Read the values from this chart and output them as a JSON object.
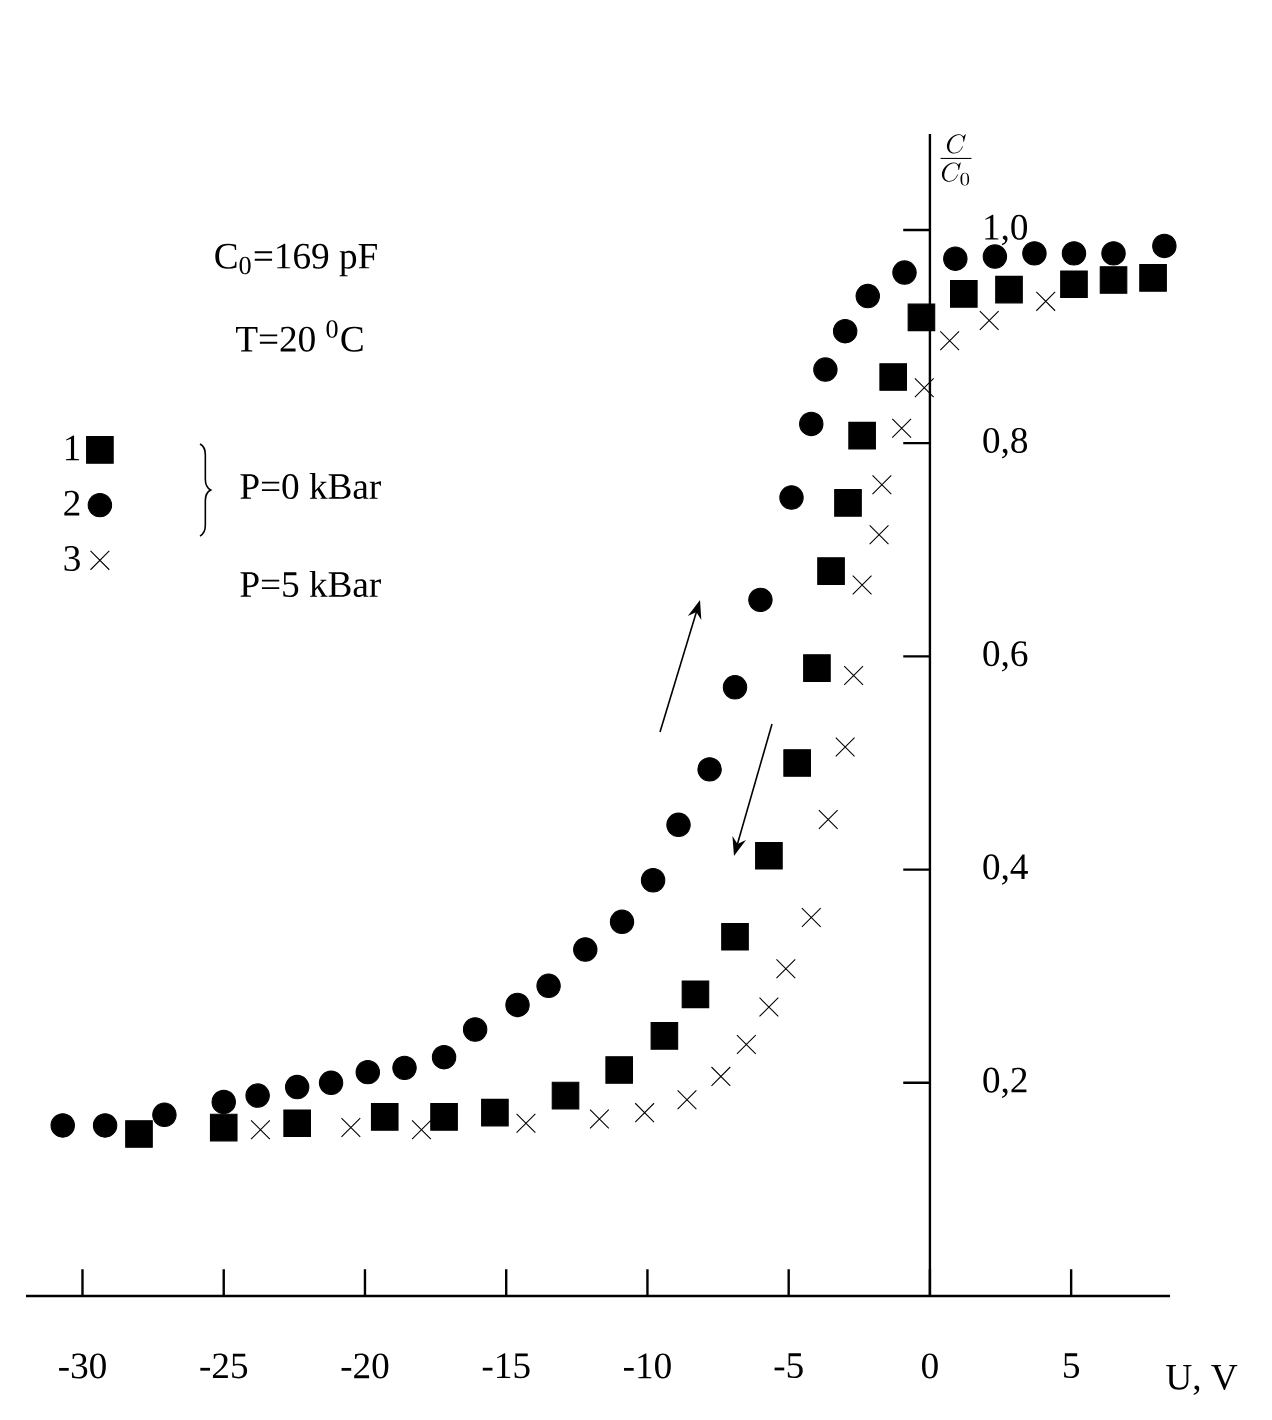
{
  "chart_data": {
    "type": "scatter",
    "ylabel": "\\frac{C}{C_{0}}",
    "xlabel": "U, V",
    "annotations": [
      "C$_{0}$=169 pF",
      "T=20 $^{0}$C",
      "P=0 kBar",
      "P=5 kBar"
    ],
    "xlim": [
      -32,
      8.5
    ],
    "ylim": [
      0,
      1.09
    ],
    "xticks": [
      -30,
      -25,
      -20,
      -15,
      -10,
      -5,
      0,
      5
    ],
    "yticks": [
      {
        "value": 0.2,
        "label": "0,2"
      },
      {
        "value": 0.4,
        "label": "0,4"
      },
      {
        "value": 0.6,
        "label": "0,6"
      },
      {
        "value": 0.8,
        "label": "0,8"
      },
      {
        "value": 1.0,
        "label": "1,0"
      }
    ],
    "legend": "top left",
    "grid": false,
    "series": [
      {
        "name": "1",
        "color": "#000000",
        "marker": "square",
        "x": [
          -28.0,
          -25.0,
          -22.4,
          -19.3,
          -17.2,
          -15.4,
          -12.9,
          -11.0,
          -9.4,
          -8.3,
          -6.9,
          -5.7,
          -4.7,
          -4.0,
          -3.5,
          -2.9,
          -2.4,
          -1.3,
          -0.3,
          1.2,
          2.8,
          5.1,
          6.5,
          7.9
        ],
        "values": [
          0.152,
          0.158,
          0.162,
          0.168,
          0.168,
          0.172,
          0.188,
          0.212,
          0.244,
          0.283,
          0.337,
          0.413,
          0.5,
          0.589,
          0.68,
          0.744,
          0.807,
          0.862,
          0.918,
          0.94,
          0.944,
          0.949,
          0.953,
          0.955
        ]
      },
      {
        "name": "2",
        "color": "#000000",
        "marker": "circle",
        "x": [
          -30.7,
          -29.2,
          -27.1,
          -25.0,
          -23.8,
          -22.4,
          -21.2,
          -19.9,
          -18.6,
          -17.2,
          -16.1,
          -14.6,
          -13.5,
          -12.2,
          -10.9,
          -9.8,
          -8.9,
          -7.8,
          -6.9,
          -6.0,
          -4.9,
          -4.2,
          -3.7,
          -3.0,
          -2.2,
          -0.9,
          0.9,
          2.3,
          3.7,
          5.1,
          6.5,
          8.3
        ],
        "values": [
          0.16,
          0.16,
          0.17,
          0.182,
          0.188,
          0.196,
          0.2,
          0.21,
          0.214,
          0.224,
          0.25,
          0.273,
          0.291,
          0.325,
          0.351,
          0.39,
          0.442,
          0.494,
          0.571,
          0.653,
          0.749,
          0.818,
          0.869,
          0.905,
          0.938,
          0.96,
          0.973,
          0.975,
          0.978,
          0.978,
          0.978,
          0.985
        ]
      },
      {
        "name": "3",
        "color": "#000000",
        "marker": "cross",
        "x": [
          -23.7,
          -20.5,
          -18.0,
          -14.3,
          -11.7,
          -10.1,
          -8.6,
          -7.4,
          -6.5,
          -5.7,
          -5.1,
          -4.2,
          -3.6,
          -3.0,
          -2.7,
          -2.4,
          -1.8,
          -1.7,
          -1.0,
          -0.2,
          0.7,
          2.1,
          4.1
        ],
        "values": [
          0.156,
          0.158,
          0.156,
          0.162,
          0.166,
          0.172,
          0.184,
          0.206,
          0.236,
          0.271,
          0.307,
          0.355,
          0.447,
          0.515,
          0.582,
          0.667,
          0.714,
          0.761,
          0.814,
          0.852,
          0.896,
          0.915,
          0.933
        ]
      }
    ]
  }
}
